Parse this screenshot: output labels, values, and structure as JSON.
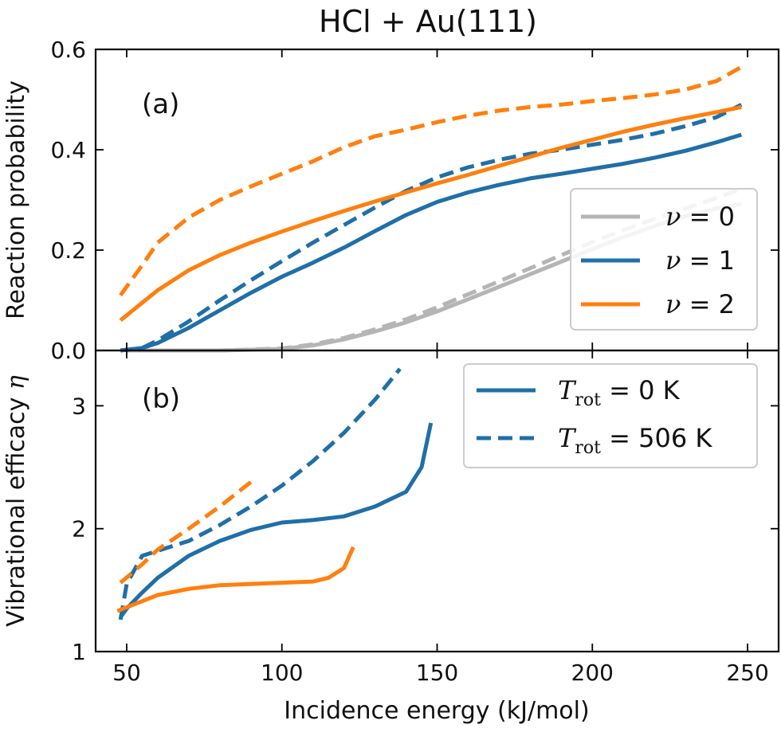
{
  "figure": {
    "title": "HCl + Au(111)",
    "xlabel": "Incidence energy (kJ/mol)"
  },
  "chart_data": [
    {
      "type": "line",
      "panel_label": "(a)",
      "ylabel": "Reaction probability",
      "xlim": [
        40,
        260
      ],
      "ylim": [
        0,
        0.6
      ],
      "xticks": [
        50,
        100,
        150,
        200,
        250
      ],
      "yticks": [
        0.0,
        0.2,
        0.4,
        0.6
      ],
      "ytick_labels": [
        "0.0",
        "0.2",
        "0.4",
        "0.6"
      ],
      "legend": {
        "placement": "right",
        "entries": [
          {
            "var": "ν",
            "rest": " = 0",
            "color": "#b5b5b5"
          },
          {
            "var": "ν",
            "rest": " = 1",
            "color": "#1f6fa8"
          },
          {
            "var": "ν",
            "rest": " = 2",
            "color": "#ff7f0e"
          }
        ]
      },
      "series": [
        {
          "key": "v0_T0",
          "color": "#b5b5b5",
          "dash": "solid",
          "x": [
            50,
            80,
            100,
            110,
            120,
            130,
            140,
            150,
            160,
            170,
            180,
            190,
            200,
            210,
            220,
            230,
            240,
            248
          ],
          "y": [
            0.0,
            0.0,
            0.003,
            0.01,
            0.022,
            0.038,
            0.056,
            0.078,
            0.102,
            0.127,
            0.152,
            0.177,
            0.202,
            0.226,
            0.248,
            0.268,
            0.283,
            0.292
          ]
        },
        {
          "key": "v0_T506",
          "color": "#b5b5b5",
          "dash": "dashed",
          "x": [
            50,
            80,
            100,
            110,
            120,
            130,
            140,
            150,
            160,
            170,
            180,
            190,
            200,
            210,
            220,
            230,
            240,
            248
          ],
          "y": [
            0.0,
            0.0,
            0.004,
            0.012,
            0.025,
            0.042,
            0.062,
            0.086,
            0.112,
            0.138,
            0.164,
            0.19,
            0.216,
            0.24,
            0.262,
            0.283,
            0.304,
            0.322
          ]
        },
        {
          "key": "v1_T0",
          "color": "#1f6fa8",
          "dash": "solid",
          "x": [
            48,
            55,
            60,
            70,
            80,
            90,
            100,
            110,
            120,
            130,
            140,
            150,
            160,
            170,
            180,
            190,
            200,
            210,
            220,
            230,
            240,
            248
          ],
          "y": [
            0.0,
            0.005,
            0.015,
            0.045,
            0.08,
            0.115,
            0.147,
            0.175,
            0.205,
            0.238,
            0.27,
            0.296,
            0.315,
            0.33,
            0.343,
            0.352,
            0.362,
            0.372,
            0.384,
            0.398,
            0.415,
            0.43
          ]
        },
        {
          "key": "v1_T506",
          "color": "#1f6fa8",
          "dash": "dashed",
          "x": [
            48,
            55,
            60,
            70,
            80,
            90,
            100,
            110,
            120,
            130,
            140,
            150,
            160,
            170,
            180,
            190,
            200,
            210,
            220,
            230,
            240,
            248
          ],
          "y": [
            0.0,
            0.005,
            0.02,
            0.058,
            0.1,
            0.14,
            0.178,
            0.215,
            0.25,
            0.285,
            0.318,
            0.345,
            0.365,
            0.38,
            0.392,
            0.4,
            0.41,
            0.42,
            0.432,
            0.447,
            0.465,
            0.49
          ]
        },
        {
          "key": "v2_T0",
          "color": "#ff7f0e",
          "dash": "solid",
          "x": [
            48,
            55,
            60,
            70,
            80,
            90,
            100,
            110,
            120,
            130,
            140,
            150,
            160,
            170,
            180,
            190,
            200,
            210,
            220,
            230,
            240,
            248
          ],
          "y": [
            0.06,
            0.095,
            0.12,
            0.16,
            0.19,
            0.215,
            0.237,
            0.258,
            0.278,
            0.297,
            0.315,
            0.333,
            0.35,
            0.368,
            0.386,
            0.404,
            0.42,
            0.436,
            0.45,
            0.463,
            0.475,
            0.485
          ]
        },
        {
          "key": "v2_T506",
          "color": "#ff7f0e",
          "dash": "dashed",
          "x": [
            48,
            55,
            60,
            70,
            80,
            90,
            100,
            110,
            120,
            130,
            140,
            150,
            160,
            170,
            180,
            190,
            200,
            210,
            220,
            230,
            240,
            248
          ],
          "y": [
            0.11,
            0.17,
            0.215,
            0.265,
            0.3,
            0.327,
            0.352,
            0.377,
            0.405,
            0.427,
            0.44,
            0.455,
            0.468,
            0.478,
            0.485,
            0.49,
            0.497,
            0.503,
            0.51,
            0.52,
            0.537,
            0.565
          ]
        }
      ]
    },
    {
      "type": "line",
      "panel_label": "(b)",
      "ylabel_text": "Vibrational efficacy ",
      "ylabel_var": "η",
      "xlim": [
        40,
        260
      ],
      "ylim": [
        1,
        3.45
      ],
      "xticks": [
        50,
        100,
        150,
        200,
        250
      ],
      "yticks": [
        1,
        2,
        3
      ],
      "ytick_labels": [
        "1",
        "2",
        "3"
      ],
      "legend": {
        "placement": "top-right",
        "entries": [
          {
            "var": "T",
            "sub": "rot",
            "rest": " = 0 K",
            "color": "#1f6fa8",
            "dash": "solid"
          },
          {
            "var": "T",
            "sub": "rot",
            "rest": " = 506 K",
            "color": "#1f6fa8",
            "dash": "dashed"
          }
        ]
      },
      "series": [
        {
          "key": "eta1_T0",
          "color": "#1f6fa8",
          "dash": "solid",
          "x": [
            48,
            50,
            55,
            60,
            70,
            80,
            90,
            100,
            110,
            120,
            130,
            140,
            145,
            148
          ],
          "y": [
            1.28,
            1.35,
            1.48,
            1.6,
            1.78,
            1.9,
            1.99,
            2.05,
            2.07,
            2.1,
            2.18,
            2.3,
            2.5,
            2.86
          ]
        },
        {
          "key": "eta1_T506",
          "color": "#1f6fa8",
          "dash": "dashed",
          "x": [
            48,
            50,
            55,
            60,
            70,
            80,
            90,
            100,
            110,
            120,
            130,
            138
          ],
          "y": [
            1.26,
            1.55,
            1.78,
            1.82,
            1.9,
            2.03,
            2.18,
            2.35,
            2.55,
            2.78,
            3.05,
            3.3
          ]
        },
        {
          "key": "eta2_T0",
          "color": "#ff7f0e",
          "dash": "solid",
          "x": [
            47,
            60,
            70,
            80,
            90,
            100,
            110,
            115,
            120,
            123
          ],
          "y": [
            1.33,
            1.46,
            1.51,
            1.54,
            1.55,
            1.56,
            1.57,
            1.6,
            1.68,
            1.85
          ]
        },
        {
          "key": "eta2_T506",
          "color": "#ff7f0e",
          "dash": "dashed",
          "x": [
            48,
            55,
            60,
            70,
            80,
            91
          ],
          "y": [
            1.56,
            1.71,
            1.83,
            2.0,
            2.18,
            2.4
          ]
        }
      ]
    }
  ]
}
